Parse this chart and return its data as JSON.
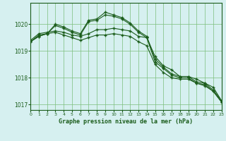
{
  "title": "Graphe pression niveau de la mer (hPa)",
  "bg_color": "#d6f0f0",
  "plot_bg_color": "#d6f0f0",
  "grid_color": "#7bbf7b",
  "line_color": "#1a5c1a",
  "xlim": [
    0,
    23
  ],
  "ylim": [
    1016.8,
    1020.8
  ],
  "yticks": [
    1017,
    1018,
    1019,
    1020
  ],
  "xticks": [
    0,
    1,
    2,
    3,
    4,
    5,
    6,
    7,
    8,
    9,
    10,
    11,
    12,
    13,
    14,
    15,
    16,
    17,
    18,
    19,
    20,
    21,
    22,
    23
  ],
  "series": [
    [
      1019.4,
      1019.65,
      1019.7,
      1019.75,
      1019.7,
      1019.6,
      1019.55,
      1019.65,
      1019.8,
      1019.8,
      1019.85,
      1019.8,
      1019.75,
      1019.55,
      1019.5,
      1018.8,
      1018.45,
      1018.3,
      1018.05,
      1018.05,
      1017.95,
      1017.8,
      1017.65,
      1017.15
    ],
    [
      1019.35,
      1019.6,
      1019.65,
      1019.7,
      1019.6,
      1019.5,
      1019.4,
      1019.5,
      1019.6,
      1019.6,
      1019.65,
      1019.6,
      1019.55,
      1019.35,
      1019.2,
      1018.5,
      1018.2,
      1018.0,
      1017.95,
      1017.95,
      1017.8,
      1017.7,
      1017.5,
      1017.1
    ],
    [
      1019.35,
      1019.55,
      1019.65,
      1019.95,
      1019.85,
      1019.7,
      1019.6,
      1020.1,
      1020.15,
      1020.35,
      1020.3,
      1020.2,
      1020.0,
      1019.7,
      1019.5,
      1018.6,
      1018.35,
      1018.1,
      1018.0,
      1018.0,
      1017.8,
      1017.75,
      1017.5,
      1017.1
    ],
    [
      1019.35,
      1019.55,
      1019.65,
      1020.0,
      1019.9,
      1019.75,
      1019.65,
      1020.15,
      1020.2,
      1020.45,
      1020.35,
      1020.25,
      1020.05,
      1019.75,
      1019.55,
      1018.7,
      1018.4,
      1018.15,
      1018.05,
      1018.05,
      1017.85,
      1017.8,
      1017.55,
      1017.15
    ]
  ]
}
